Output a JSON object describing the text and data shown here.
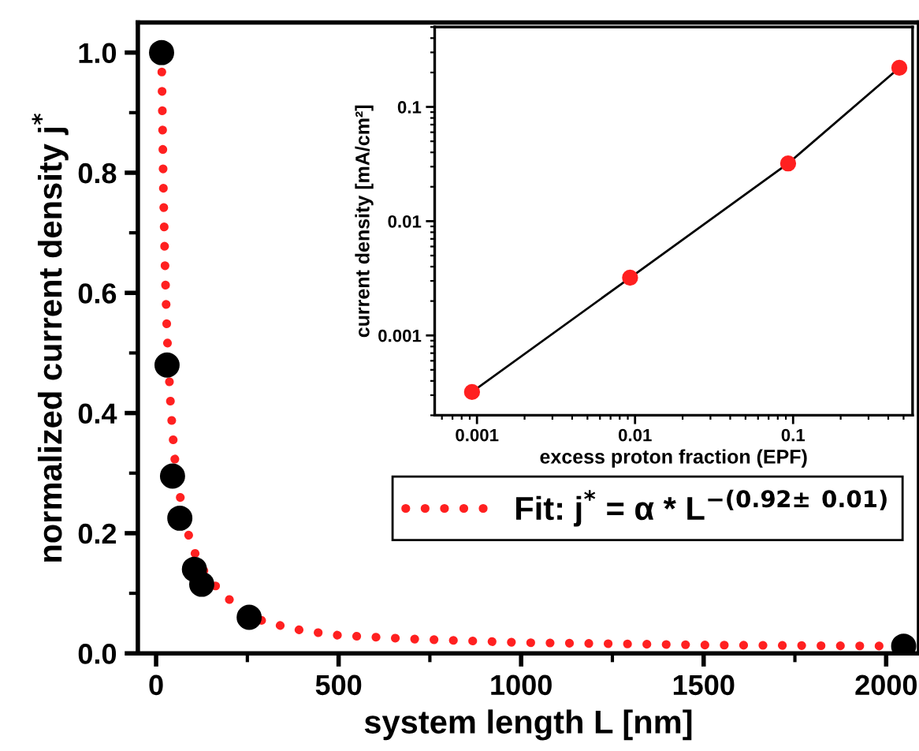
{
  "chart_data": [
    {
      "type": "scatter",
      "xlabel": "system length L [nm]",
      "ylabel": "normalized current density j$^{*}$",
      "xlim": [
        -50,
        2090
      ],
      "ylim": [
        0,
        1.05
      ],
      "xticks": [
        0,
        500,
        1000,
        1500,
        2000
      ],
      "yticks": [
        {
          "value": 0,
          "label": "0.0"
        },
        0.2,
        0.4,
        0.6,
        0.8,
        {
          "value": 1,
          "label": "1.0"
        }
      ],
      "grid": false,
      "legend": "center right",
      "series": [
        {
          "type": "line",
          "name": "Fit: j$^{*}$ = α * L$^{−(0.92± 0.01)}$",
          "color": "#ff2020",
          "line_style": "dotted",
          "marker": "none",
          "x": [
            15,
            20,
            25,
            30,
            40,
            50,
            60,
            80,
            100,
            125,
            150,
            200,
            250,
            300,
            400,
            500,
            700,
            1000,
            1500,
            2048
          ],
          "values": [
            1.0,
            0.77,
            0.63,
            0.53,
            0.41,
            0.33,
            0.28,
            0.215,
            0.175,
            0.143,
            0.12,
            0.09,
            0.065,
            0.052,
            0.038,
            0.03,
            0.024,
            0.018,
            0.014,
            0.012
          ]
        },
        {
          "color": "#000000",
          "marker": "circle",
          "x": [
            15,
            30,
            45,
            65,
            105,
            125,
            255,
            2048
          ],
          "values": [
            1.0,
            0.48,
            0.295,
            0.225,
            0.14,
            0.115,
            0.06,
            0.012
          ]
        }
      ]
    },
    {
      "type": "line",
      "xlabel": "excess proton fraction (EPF)",
      "ylabel": "current density [mA/cm²]",
      "log": "xy",
      "xlim": [
        0.00054,
        0.57
      ],
      "ylim": [
        0.0002,
        0.5
      ],
      "xticks": [
        0.001,
        0.01,
        0.1
      ],
      "yticks": [
        0.001,
        0.01,
        0.1
      ],
      "grid": false,
      "legend": false,
      "series": [
        {
          "color": "#000000",
          "marker": "none",
          "line_style": "solid",
          "x": [
            0.00093,
            0.0093,
            0.093,
            0.47
          ],
          "values": [
            0.00032,
            0.0032,
            0.032,
            0.22
          ]
        },
        {
          "type": "scatter",
          "color": "#ff2020",
          "marker": "circle",
          "x": [
            0.00093,
            0.0093,
            0.093,
            0.47
          ],
          "values": [
            0.00032,
            0.0032,
            0.032,
            0.22
          ]
        }
      ]
    }
  ]
}
